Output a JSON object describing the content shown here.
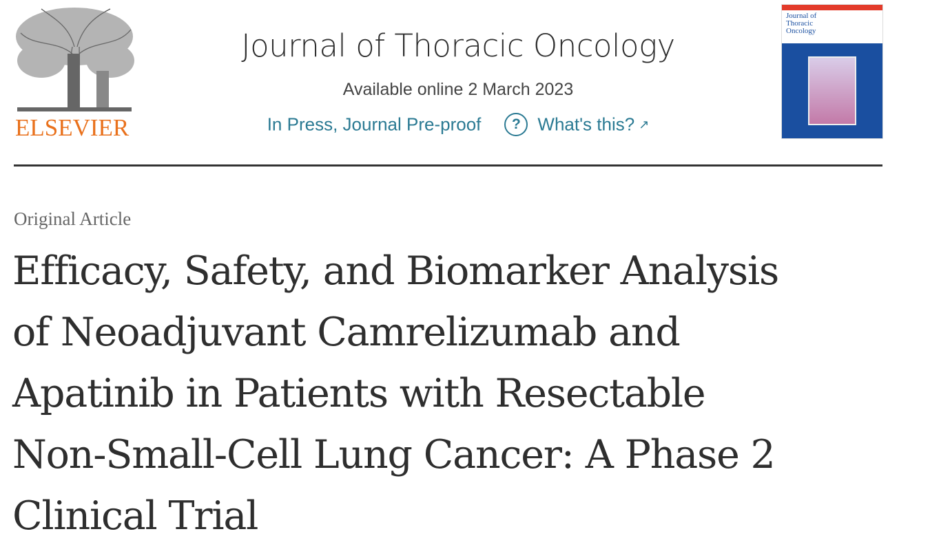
{
  "publisher": {
    "logo_text": "ELSEVIER",
    "accent": "#e9711c"
  },
  "journal": {
    "name": "Journal of Thoracic Oncology",
    "available": "Available online 2 March 2023",
    "status": "In Press, Journal Pre-proof",
    "help_link": "What's this?",
    "help_icon": "question-circle-icon",
    "link_color": "#2b7a93",
    "cover_title": "Journal of Thoracic Oncology"
  },
  "article": {
    "type": "Original Article",
    "title_lines": [
      "Efficacy, Safety, and Biomarker Analysis",
      "of Neoadjuvant Camrelizumab and",
      "Apatinib in Patients with Resectable",
      "Non-Small-Cell Lung Cancer: A Phase 2",
      "Clinical Trial"
    ]
  }
}
